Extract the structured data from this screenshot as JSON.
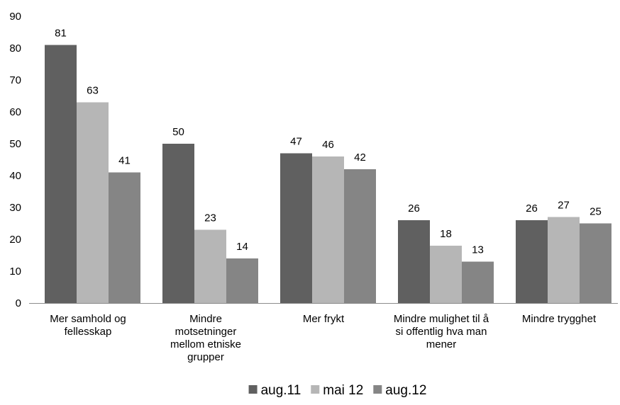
{
  "chart_data": {
    "type": "bar",
    "title": "",
    "xlabel": "",
    "ylabel": "",
    "ylim": [
      0,
      90
    ],
    "ytick_step": 10,
    "grid": false,
    "legend_position": "bottom",
    "categories": [
      "Mer samhold og fellesskap",
      "Mindre motsetninger mellom etniske grupper",
      "Mer frykt",
      "Mindre mulighet til å si offentlig hva man mener",
      "Mindre trygghet"
    ],
    "category_lines": [
      [
        "Mer samhold og",
        "fellesskap"
      ],
      [
        "Mindre",
        "motsetninger",
        "mellom etniske",
        "grupper"
      ],
      [
        "Mer frykt"
      ],
      [
        "Mindre mulighet til å",
        "si offentlig hva man",
        "mener"
      ],
      [
        "Mindre trygghet"
      ]
    ],
    "series": [
      {
        "name": "aug.11",
        "color": "#606060",
        "values": [
          81,
          50,
          47,
          26,
          26
        ]
      },
      {
        "name": "mai 12",
        "color": "#b6b6b6",
        "values": [
          63,
          23,
          46,
          18,
          27
        ]
      },
      {
        "name": "aug.12",
        "color": "#858585",
        "values": [
          41,
          14,
          42,
          13,
          25
        ]
      }
    ]
  }
}
